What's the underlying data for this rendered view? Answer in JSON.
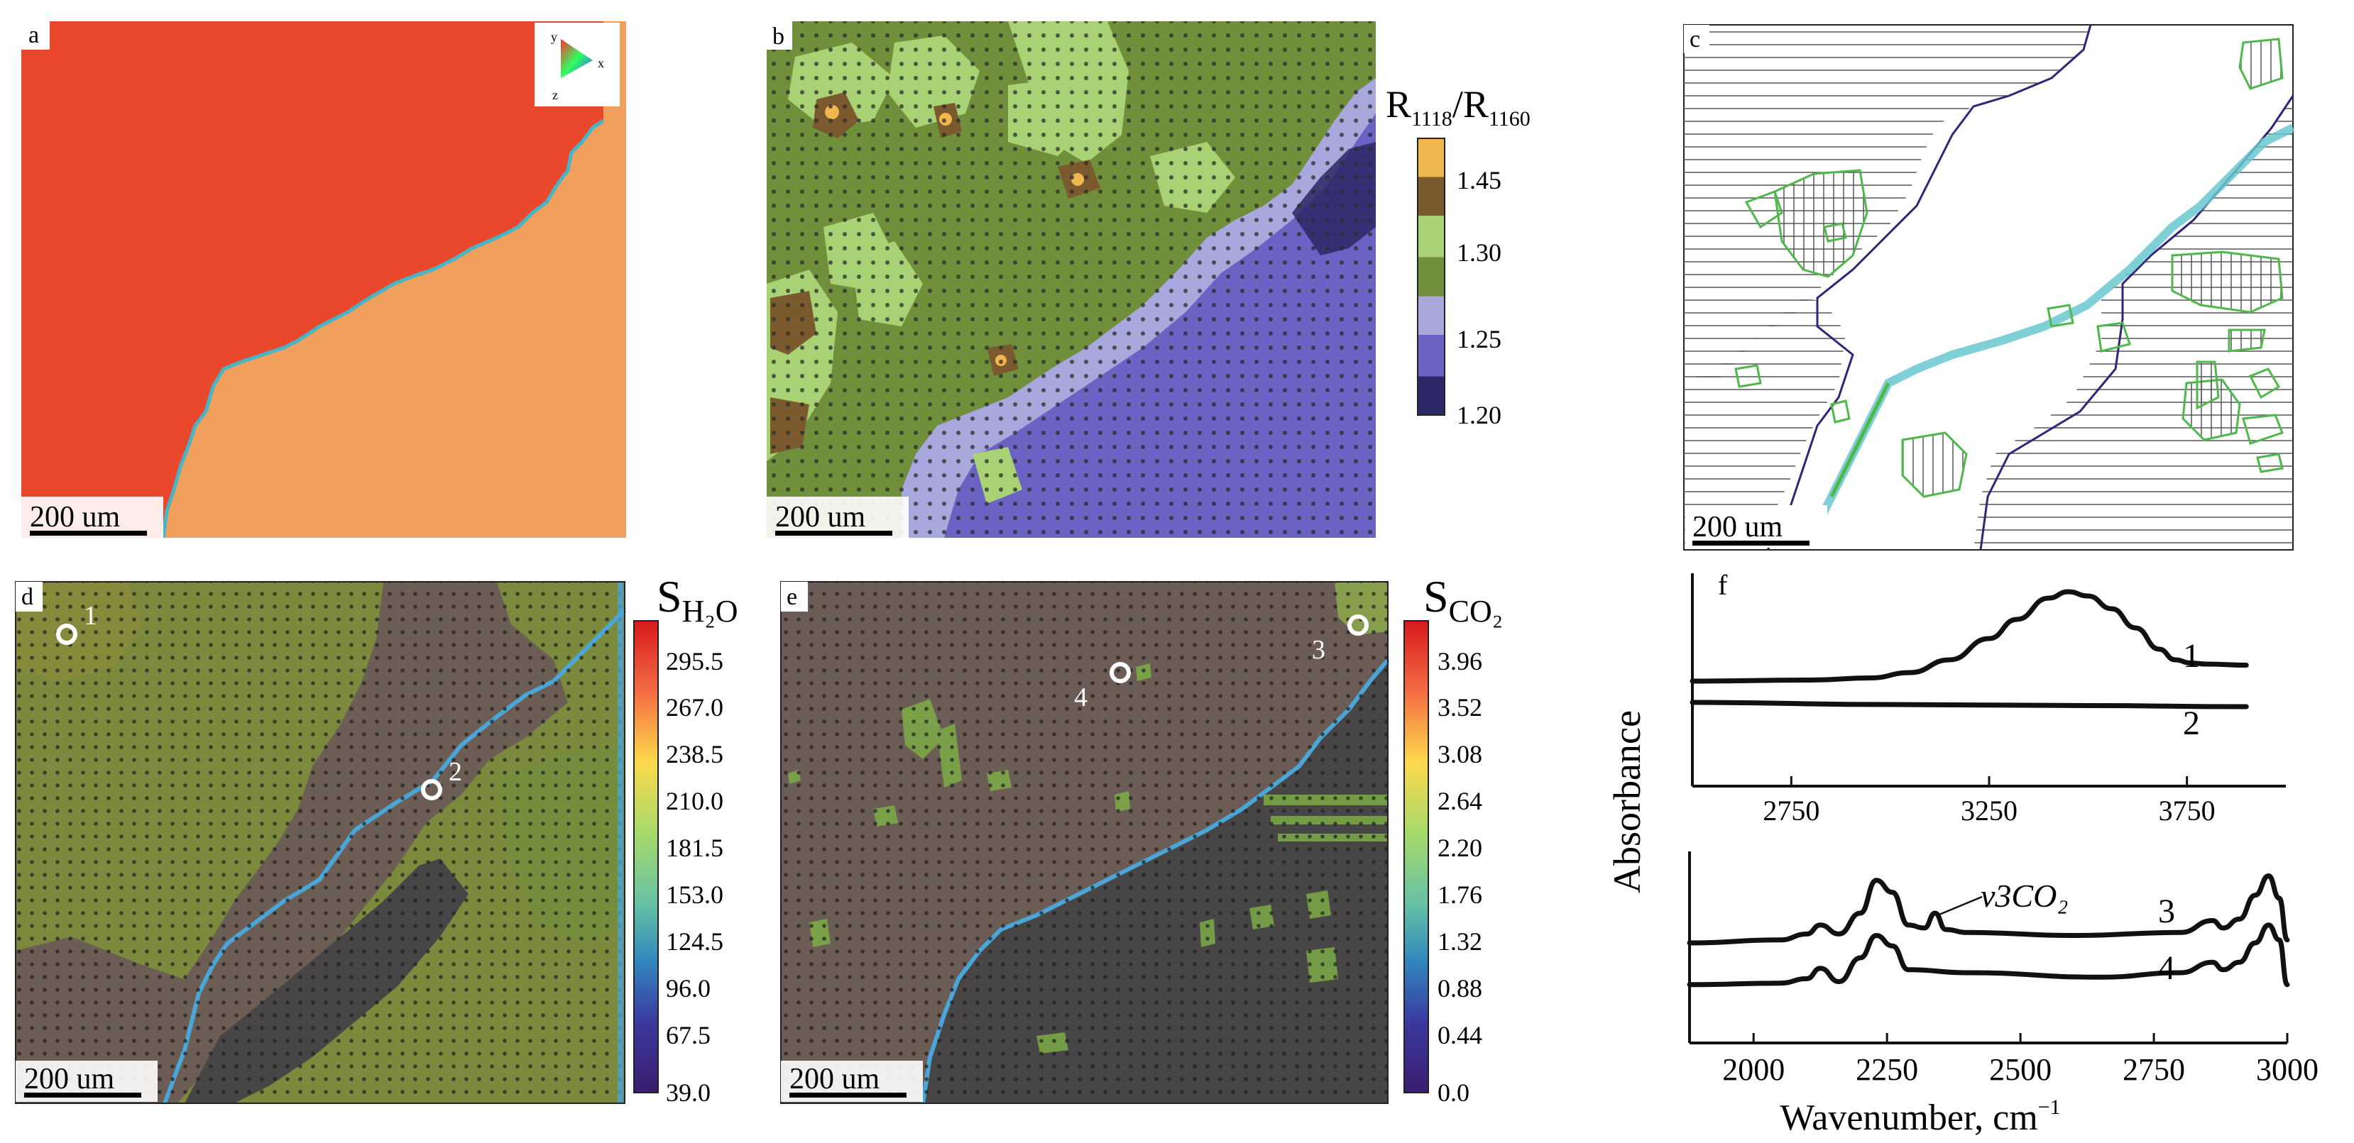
{
  "panels": {
    "a": {
      "label": "a",
      "scale_bar": "200 um",
      "orientation_key": {
        "y": "y",
        "x": "x",
        "z": "z"
      }
    },
    "b": {
      "label": "b",
      "scale_bar": "200 um",
      "colorbar": {
        "title_main": "R",
        "title_sub1": "1118",
        "slash": "/",
        "title_main2": "R",
        "title_sub2": "1160",
        "ticks": [
          "1.45",
          "1.30",
          "1.25",
          "1.20"
        ],
        "colors": [
          "#f0b650",
          "#7a5a2e",
          "#a9d274",
          "#6f8f3a",
          "#a8a8dd",
          "#6b63c4",
          "#2c2766"
        ]
      }
    },
    "c": {
      "label": "c",
      "scale_bar": "200 um"
    },
    "d": {
      "label": "d",
      "scale_bar": "200 um",
      "point_1": "1",
      "point_2": "2",
      "colorbar": {
        "title_main": "S",
        "title_sub": "H₂O",
        "ticks": [
          "295.5",
          "267.0",
          "238.5",
          "210.0",
          "181.5",
          "153.0",
          "124.5",
          "96.0",
          "67.5",
          "39.0"
        ]
      }
    },
    "e": {
      "label": "e",
      "scale_bar": "200 um",
      "point_3": "3",
      "point_4": "4",
      "colorbar": {
        "title_main": "S",
        "title_sub": "CO₂",
        "ticks": [
          "3.96",
          "3.52",
          "3.08",
          "2.64",
          "2.20",
          "1.76",
          "1.32",
          "0.88",
          "0.44",
          "0.0"
        ]
      }
    },
    "f": {
      "label": "f",
      "ylabel": "Absorbance",
      "xlabel": "Wavenumber, cm",
      "xlabel_sup": "−1",
      "annotation": "v3CO₂"
    }
  },
  "chart_data": [
    {
      "type": "line",
      "panel": "f-top",
      "xlim": [
        2500,
        4000
      ],
      "xticks": [
        "2750",
        "3250",
        "3750"
      ],
      "xtick_values": [
        2750,
        3250,
        3750
      ],
      "ylabel": "Absorbance",
      "series": [
        {
          "name": "1",
          "x": [
            2500,
            2800,
            2950,
            3050,
            3150,
            3250,
            3320,
            3400,
            3450,
            3500,
            3560,
            3620,
            3680,
            3720,
            3760,
            3800,
            3900
          ],
          "y": [
            0.1,
            0.11,
            0.13,
            0.18,
            0.3,
            0.5,
            0.68,
            0.88,
            0.94,
            0.9,
            0.78,
            0.6,
            0.4,
            0.3,
            0.27,
            0.26,
            0.25
          ]
        },
        {
          "name": "2",
          "x": [
            2500,
            3000,
            3500,
            3900
          ],
          "y": [
            -0.1,
            -0.12,
            -0.13,
            -0.14
          ]
        }
      ]
    },
    {
      "type": "line",
      "panel": "f-bottom",
      "xlim": [
        1880,
        3000
      ],
      "xticks": [
        "2000",
        "2250",
        "2500",
        "2750",
        "3000"
      ],
      "xtick_values": [
        2000,
        2250,
        2500,
        2750,
        3000
      ],
      "xlabel": "Wavenumber, cm−1",
      "series": [
        {
          "name": "3",
          "x": [
            1880,
            2050,
            2100,
            2125,
            2160,
            2200,
            2230,
            2260,
            2290,
            2320,
            2340,
            2360,
            2400,
            2600,
            2800,
            2860,
            2880,
            2910,
            2940,
            2965,
            2985,
            3000
          ],
          "y": [
            0.1,
            0.12,
            0.16,
            0.22,
            0.16,
            0.3,
            0.52,
            0.44,
            0.22,
            0.2,
            0.3,
            0.19,
            0.17,
            0.15,
            0.17,
            0.25,
            0.2,
            0.26,
            0.42,
            0.55,
            0.4,
            0.12
          ]
        },
        {
          "name": "4",
          "x": [
            1880,
            2050,
            2100,
            2125,
            2160,
            2200,
            2230,
            2260,
            2290,
            2400,
            2650,
            2800,
            2860,
            2880,
            2910,
            2940,
            2965,
            2985,
            3000
          ],
          "y": [
            -0.18,
            -0.17,
            -0.14,
            -0.07,
            -0.16,
            0.0,
            0.15,
            0.08,
            -0.08,
            -0.1,
            -0.13,
            -0.1,
            -0.03,
            -0.08,
            -0.03,
            0.1,
            0.22,
            0.12,
            -0.18
          ]
        }
      ]
    }
  ]
}
